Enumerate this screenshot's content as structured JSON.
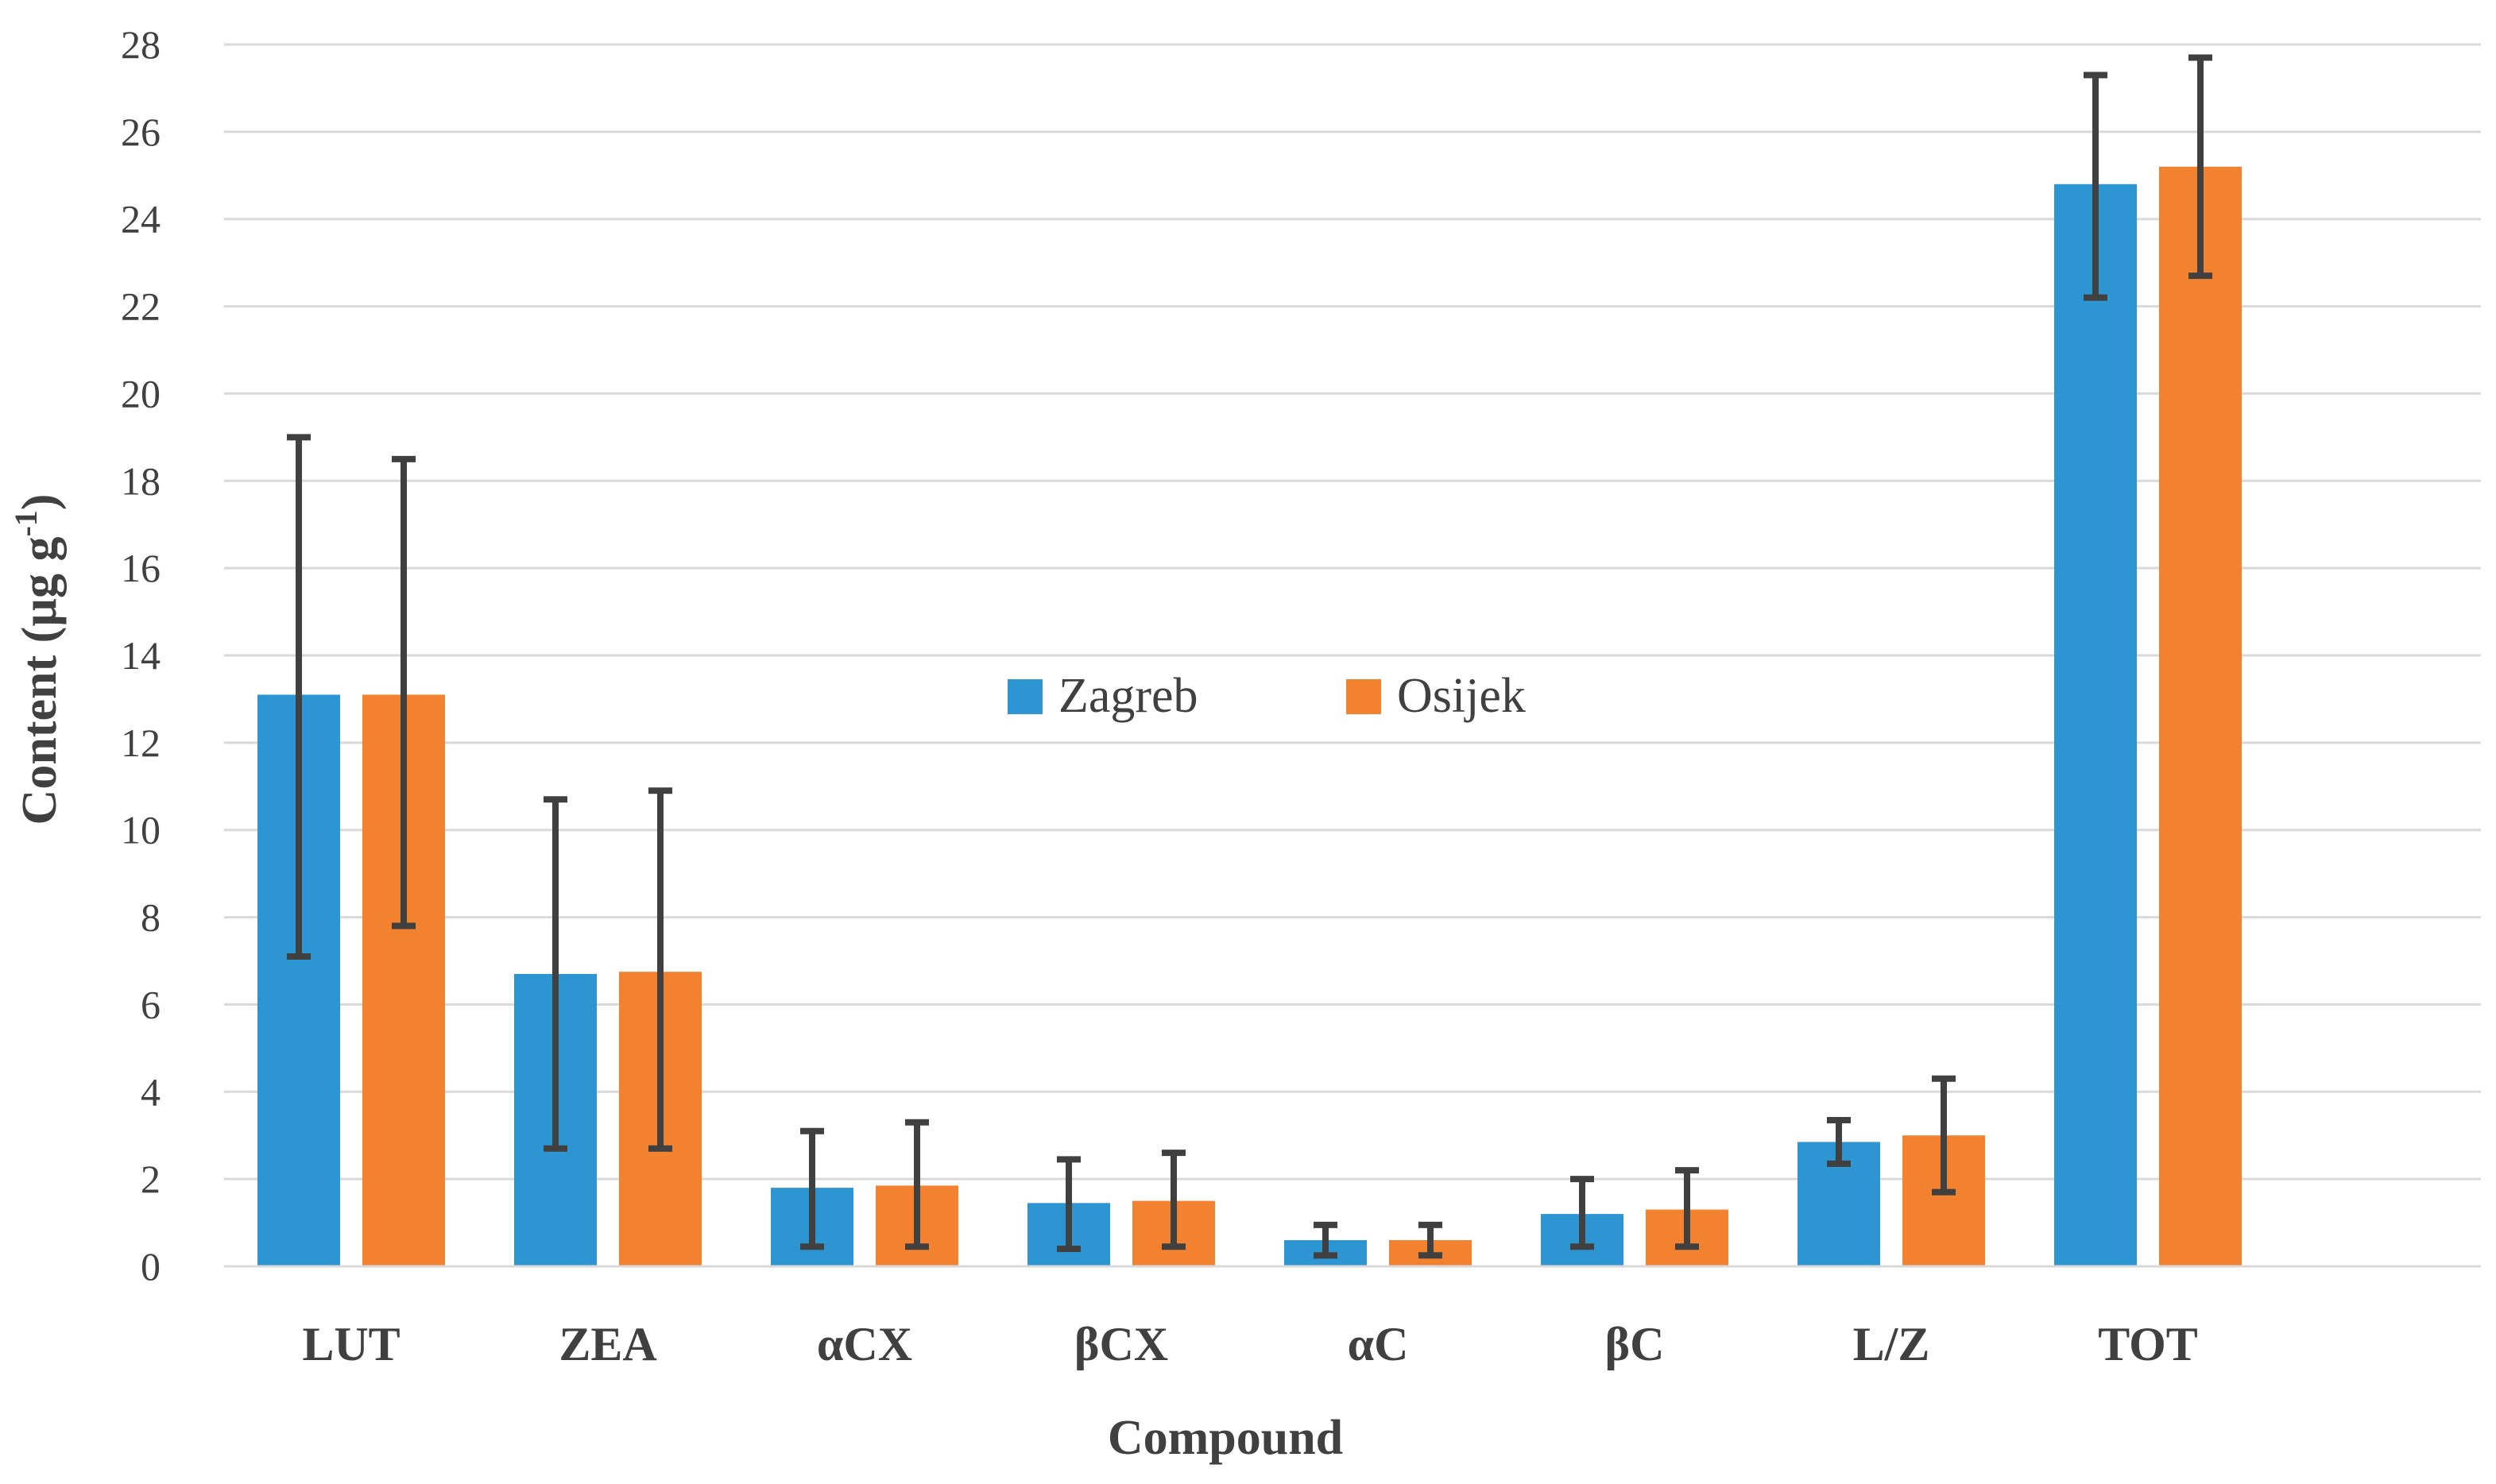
{
  "chart_data": {
    "type": "bar",
    "title": "",
    "xlabel": "Compound",
    "ylabel": "Content (µg g",
    "ylabel_superscript": "-1",
    "ylabel_close": ")",
    "ylim": [
      0,
      28
    ],
    "ytick_step": 2,
    "grid": true,
    "legend_position": "center",
    "categories": [
      "LUT",
      "ZEA",
      "αCX",
      "βCX",
      "αC",
      "βC",
      "L/Z",
      "TOT"
    ],
    "series": [
      {
        "name": "Zagreb",
        "color": "#2e95d3",
        "values": [
          13.1,
          6.7,
          1.8,
          1.45,
          0.6,
          1.2,
          2.85,
          24.8
        ],
        "error_low": [
          7.1,
          2.7,
          0.45,
          0.4,
          0.25,
          0.45,
          2.35,
          22.2
        ],
        "error_high": [
          19.0,
          10.7,
          3.1,
          2.45,
          0.95,
          2.0,
          3.35,
          27.3
        ]
      },
      {
        "name": "Osijek",
        "color": "#f28130",
        "values": [
          13.1,
          6.75,
          1.85,
          1.5,
          0.6,
          1.3,
          3.0,
          25.2
        ],
        "error_low": [
          7.8,
          2.7,
          0.45,
          0.45,
          0.25,
          0.45,
          1.7,
          22.7
        ],
        "error_high": [
          18.5,
          10.9,
          3.3,
          2.6,
          0.95,
          2.2,
          4.3,
          27.7
        ]
      }
    ]
  }
}
